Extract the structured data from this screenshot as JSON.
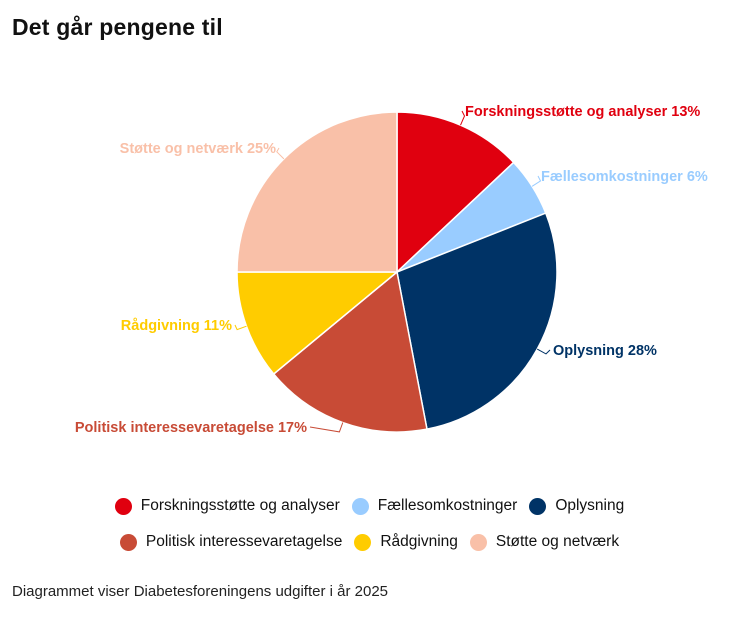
{
  "page": {
    "title": "Det går pengene til",
    "caption": "Diagrammet viser Diabetesforeningens udgifter i år 2025"
  },
  "chart_data": {
    "type": "pie",
    "title": "Det går pengene til",
    "slices": [
      {
        "name": "Forskningsstøtte og analyser",
        "value": 13,
        "label": "Forskningsstøtte og analyser 13%",
        "color": "#e0000f"
      },
      {
        "name": "Fællesomkostninger",
        "value": 6,
        "label": "Fællesomkostninger 6%",
        "color": "#99ccff"
      },
      {
        "name": "Oplysning",
        "value": 28,
        "label": "Oplysning 28%",
        "color": "#003366"
      },
      {
        "name": "Politisk interessevaretagelse",
        "value": 17,
        "label": "Politisk interessevaretagelse 17%",
        "color": "#c84b36"
      },
      {
        "name": "Rådgivning",
        "value": 11,
        "label": "Rådgivning 11%",
        "color": "#ffcc00"
      },
      {
        "name": "Støtte og netværk",
        "value": 25,
        "label": "Støtte og netværk 25%",
        "color": "#f9c0a8"
      }
    ],
    "legend": {
      "placement": "bottom",
      "rows": [
        [
          "Forskningsstøtte og analyser",
          "Fællesomkostninger",
          "Oplysning"
        ],
        [
          "Politisk interessevaretagelse",
          "Rådgivning",
          "Støtte og netværk"
        ]
      ]
    }
  }
}
